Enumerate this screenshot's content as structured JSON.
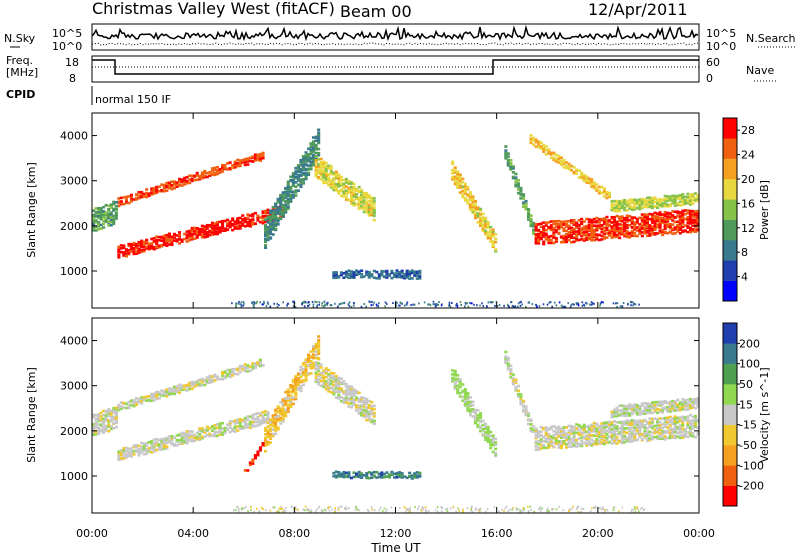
{
  "header": {
    "title": "Christmas Valley West (fitACF)",
    "beam": "Beam 00",
    "date": "12/Apr/2011"
  },
  "upper_panels": {
    "nsky_label": "N.Sky",
    "nsearch_label": "N.Search",
    "count_tick_top": "10^5",
    "count_tick_bottom": "10^0",
    "freq_label_line1": "Freq.",
    "freq_label_line2": "[MHz]",
    "freq_tick_top": "18",
    "freq_tick_bottom": "8",
    "nave_label": "Nave",
    "nave_tick_top": "60",
    "nave_tick_bottom": "0",
    "cpid_label": "CPID",
    "cpid_value": "normal 150 IF"
  },
  "chart_data": [
    {
      "type": "heatmap",
      "name": "power",
      "xlabel": "Time UT",
      "ylabel": "Slant Range [km]",
      "x_ticks": [
        "00:00",
        "04:00",
        "08:00",
        "12:00",
        "16:00",
        "20:00",
        "00:00"
      ],
      "y_ticks": [
        1000,
        2000,
        3000,
        4000
      ],
      "xlim_hours": [
        0,
        24
      ],
      "ylim_km": [
        180,
        4500
      ],
      "colorbar_label": "Power [dB]",
      "colorbar_ticks": [
        4,
        8,
        12,
        16,
        20,
        24,
        28
      ],
      "colorbar_range": [
        0,
        30
      ],
      "colors": [
        "#0000ff",
        "#1f3fae",
        "#3a7a8e",
        "#4f9a5a",
        "#86c24a",
        "#e8d840",
        "#f4a020",
        "#f06010",
        "#ff0000"
      ],
      "features": [
        {
          "t": [
            1.0,
            7.6
          ],
          "r0": [
            1400,
            2300
          ],
          "thick": 280,
          "val": 28
        },
        {
          "t": [
            1.0,
            6.8
          ],
          "r0": [
            2500,
            3550
          ],
          "thick": 180,
          "val": 26
        },
        {
          "t": [
            0.0,
            1.0
          ],
          "r0": [
            2100,
            2300
          ],
          "thick": 500,
          "val": 12
        },
        {
          "t": [
            6.8,
            9.0
          ],
          "r0": [
            1800,
            3900
          ],
          "thick": 650,
          "val": 10
        },
        {
          "t": [
            8.8,
            11.2
          ],
          "r0": [
            3300,
            2300
          ],
          "thick": 500,
          "val": 18
        },
        {
          "t": [
            9.5,
            13.0
          ],
          "r0": [
            900,
            900
          ],
          "thick": 180,
          "val": 7
        },
        {
          "t": [
            14.2,
            16.0
          ],
          "r0": [
            3200,
            1500
          ],
          "thick": 420,
          "val": 19
        },
        {
          "t": [
            16.3,
            17.5
          ],
          "r0": [
            3600,
            1800
          ],
          "thick": 300,
          "val": 12
        },
        {
          "t": [
            17.5,
            24.0
          ],
          "r0": [
            1800,
            2100
          ],
          "thick": 500,
          "val": 27
        },
        {
          "t": [
            17.3,
            20.5
          ],
          "r0": [
            3900,
            2600
          ],
          "thick": 200,
          "val": 20
        },
        {
          "t": [
            20.5,
            24.0
          ],
          "r0": [
            2400,
            2600
          ],
          "thick": 250,
          "val": 17
        }
      ]
    },
    {
      "type": "heatmap",
      "name": "velocity",
      "xlabel": "Time UT",
      "ylabel": "Slant Range [km]",
      "x_ticks": [
        "00:00",
        "04:00",
        "08:00",
        "12:00",
        "16:00",
        "20:00",
        "00:00"
      ],
      "y_ticks": [
        1000,
        2000,
        3000,
        4000
      ],
      "xlim_hours": [
        0,
        24
      ],
      "ylim_km": [
        180,
        4500
      ],
      "colorbar_label": "Velocity [m s^-1]",
      "colorbar_ticks": [
        "200",
        "100",
        "50",
        "15",
        "-15",
        "-50",
        "-100",
        "-200"
      ],
      "colorbar_range": [
        -250,
        250
      ],
      "colors": [
        "#ff0000",
        "#f06010",
        "#f4a020",
        "#f0c830",
        "#c8c8c8",
        "#90d850",
        "#4fa050",
        "#3a7a8e",
        "#1f3fae"
      ],
      "features": [
        {
          "t": [
            1.0,
            7.0
          ],
          "r0": [
            1450,
            2300
          ],
          "thick": 280,
          "val": 0
        },
        {
          "t": [
            1.0,
            6.8
          ],
          "r0": [
            2500,
            3500
          ],
          "thick": 180,
          "val": 0
        },
        {
          "t": [
            0.0,
            1.0
          ],
          "r0": [
            2100,
            2300
          ],
          "thick": 500,
          "val": 0
        },
        {
          "t": [
            6.8,
            9.0
          ],
          "r0": [
            1800,
            3900
          ],
          "thick": 550,
          "val": -60
        },
        {
          "t": [
            6.0,
            6.8
          ],
          "r0": [
            1050,
            1750
          ],
          "thick": 120,
          "val": -220
        },
        {
          "t": [
            8.8,
            11.2
          ],
          "r0": [
            3300,
            2300
          ],
          "thick": 500,
          "val": 0
        },
        {
          "t": [
            9.5,
            13.0
          ],
          "r0": [
            1000,
            1000
          ],
          "thick": 150,
          "val": 160
        },
        {
          "t": [
            14.2,
            16.0
          ],
          "r0": [
            3200,
            1500
          ],
          "thick": 420,
          "val": 40
        },
        {
          "t": [
            16.3,
            17.5
          ],
          "r0": [
            3600,
            1800
          ],
          "thick": 300,
          "val": 0
        },
        {
          "t": [
            17.5,
            24.0
          ],
          "r0": [
            1800,
            2100
          ],
          "thick": 500,
          "val": 0
        },
        {
          "t": [
            20.5,
            24.0
          ],
          "r0": [
            2400,
            2600
          ],
          "thick": 250,
          "val": 0
        }
      ]
    }
  ]
}
